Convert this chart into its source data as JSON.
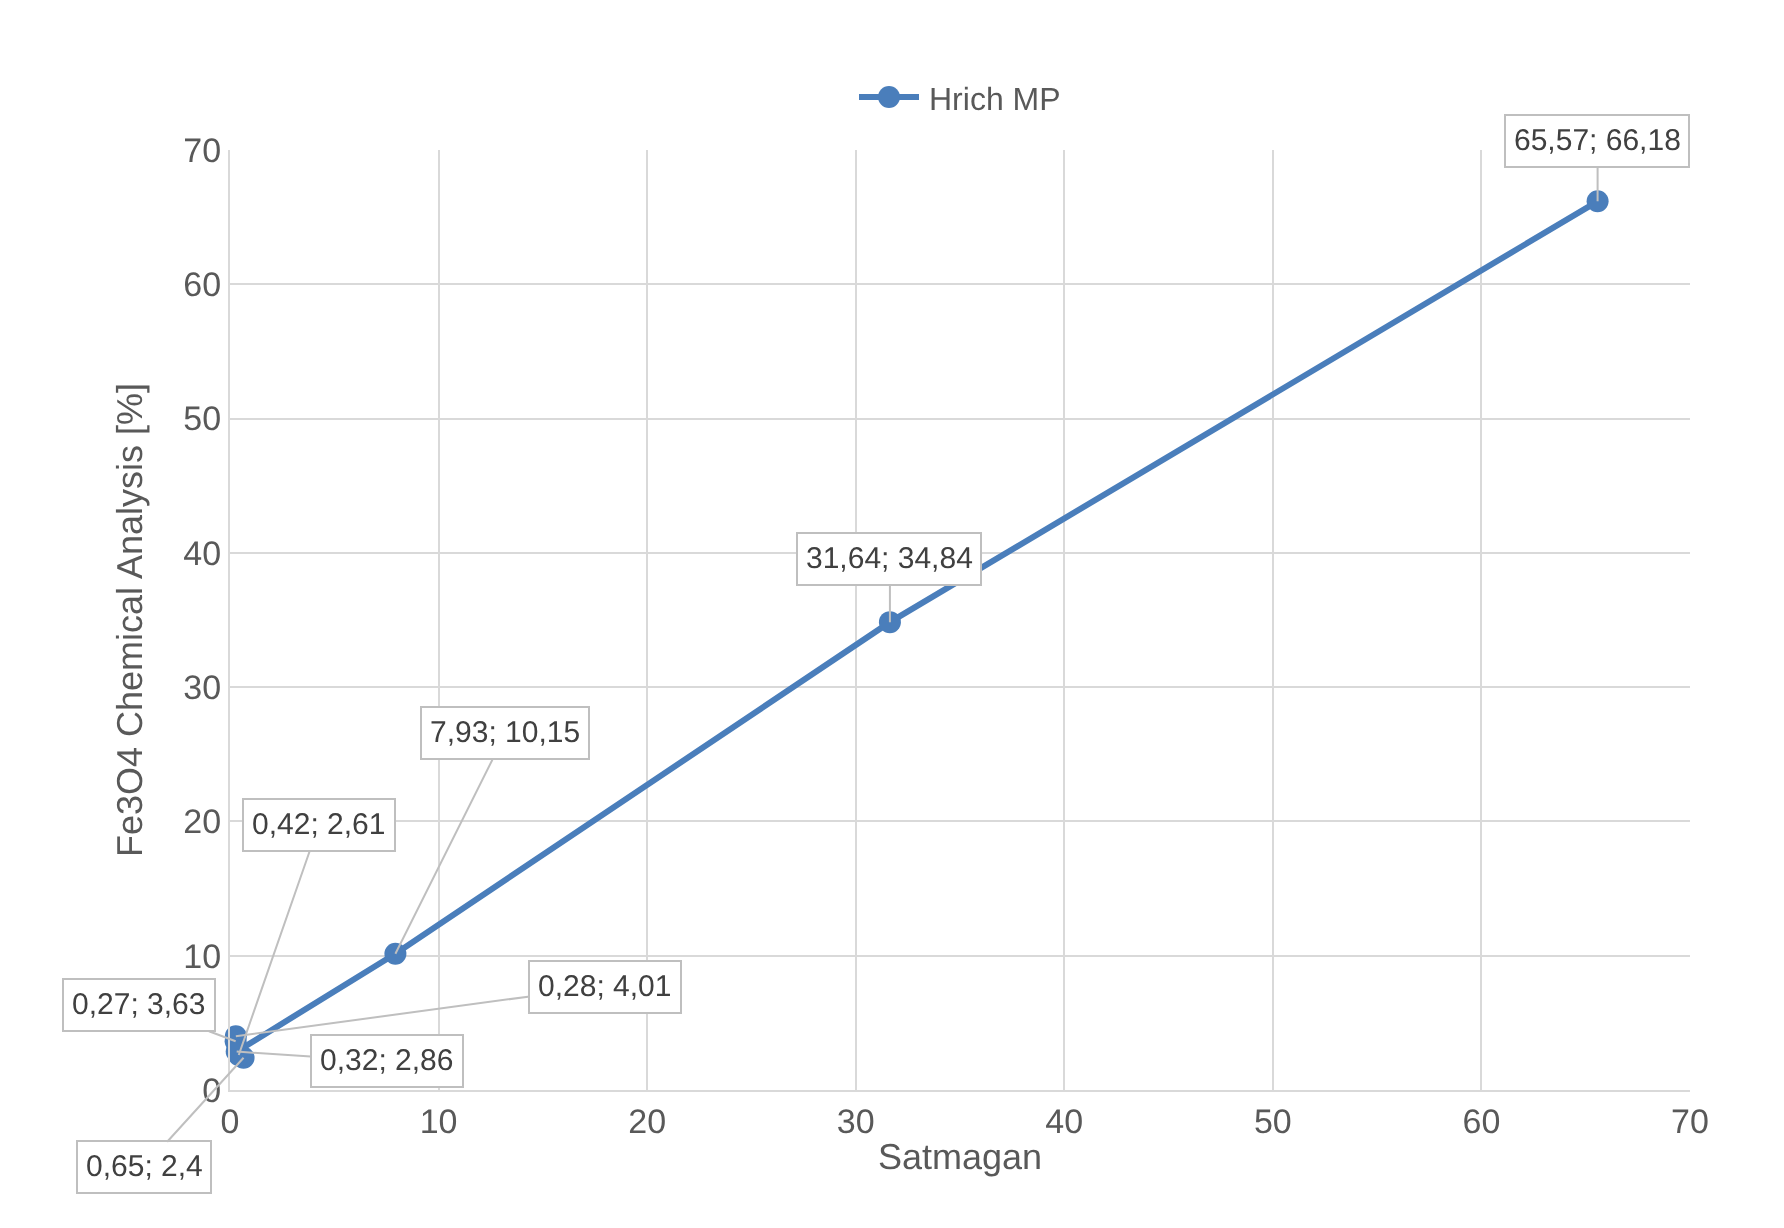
{
  "chart_data": {
    "type": "line",
    "xlabel": "Satmagan",
    "ylabel": "Fe3O4 Chemical Analysis [%]",
    "x": [
      0.65,
      0.27,
      0.42,
      0.28,
      0.32,
      7.93,
      31.64,
      65.57
    ],
    "series": [
      {
        "name": "Hrich MP",
        "color": "#4a7ebb",
        "values": [
          2.4,
          3.63,
          2.61,
          4.01,
          2.86,
          10.15,
          34.84,
          66.18
        ],
        "value_labels": [
          "0,65; 2,4",
          "0,27; 3,63",
          "0,42; 2,61",
          "0,28; 4,01",
          "0,32; 2,86",
          "7,93; 10,15",
          "31,64; 34,84",
          "65,57; 66,18"
        ]
      }
    ],
    "xlim": [
      0,
      70
    ],
    "ylim": [
      0,
      70
    ],
    "xticks": [
      0,
      10,
      20,
      30,
      40,
      50,
      60,
      70
    ],
    "yticks": [
      0,
      10,
      20,
      30,
      40,
      50,
      60,
      70
    ],
    "grid": true,
    "legend": "top",
    "marker": "circle",
    "line_style": "solid"
  }
}
